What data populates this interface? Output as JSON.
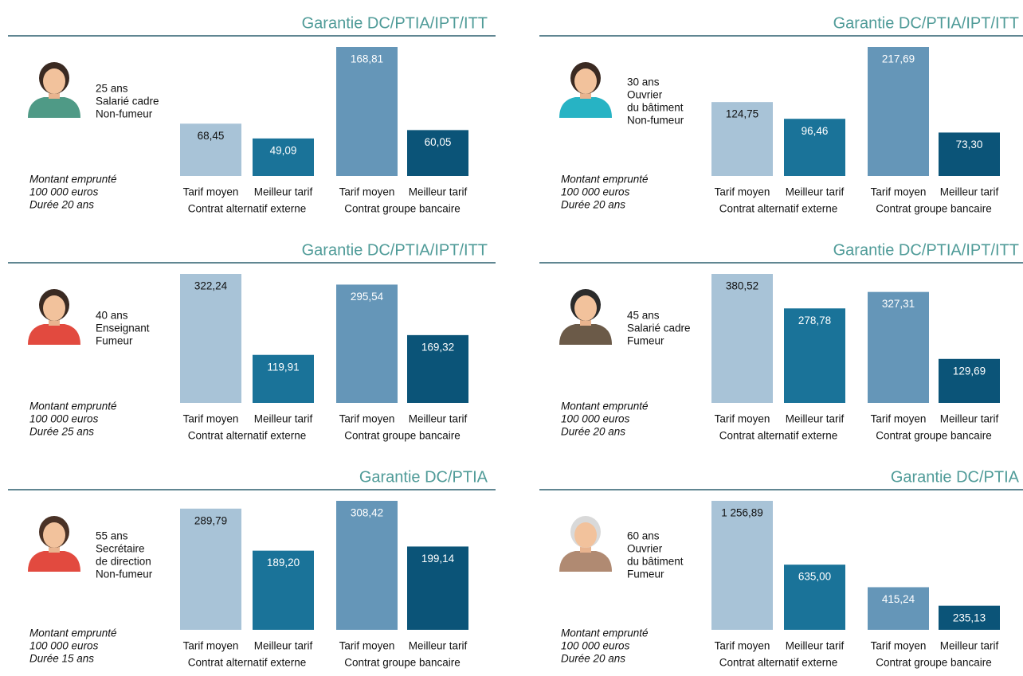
{
  "chart_data": [
    {
      "type": "bar",
      "title": "Garantie DC/PTIA/IPT/ITT",
      "profile": [
        "25 ans",
        "Salarié cadre",
        "Non-fumeur"
      ],
      "note": [
        "Montant emprunté",
        "100 000 euros",
        "Durée 20 ans"
      ],
      "categories": [
        "Tarif moyen",
        "Meilleur tarif",
        "Tarif moyen",
        "Meilleur tarif"
      ],
      "groups": [
        "Contrat alternatif externe",
        "Contrat groupe bancaire"
      ],
      "values": [
        68.45,
        49.09,
        168.81,
        60.05
      ],
      "value_labels": [
        "68,45",
        "49,09",
        "168,81",
        "60,05"
      ],
      "colors": [
        "#a8c3d7",
        "#1a7399",
        "#6596b8",
        "#0b5478"
      ]
    },
    {
      "type": "bar",
      "title": "Garantie DC/PTIA/IPT/ITT",
      "profile": [
        "30 ans",
        "Ouvrier",
        "du bâtiment",
        "Non-fumeur"
      ],
      "note": [
        "Montant emprunté",
        "100 000 euros",
        "Durée 20 ans"
      ],
      "categories": [
        "Tarif moyen",
        "Meilleur tarif",
        "Tarif moyen",
        "Meilleur tarif"
      ],
      "groups": [
        "Contrat alternatif externe",
        "Contrat groupe bancaire"
      ],
      "values": [
        124.75,
        96.46,
        217.69,
        73.3
      ],
      "value_labels": [
        "124,75",
        "96,46",
        "217,69",
        "73,30"
      ],
      "colors": [
        "#a8c3d7",
        "#1a7399",
        "#6596b8",
        "#0b5478"
      ]
    },
    {
      "type": "bar",
      "title": "Garantie DC/PTIA/IPT/ITT",
      "profile": [
        "40 ans",
        "Enseignant",
        "Fumeur"
      ],
      "note": [
        "Montant emprunté",
        "100 000 euros",
        "Durée 25 ans"
      ],
      "categories": [
        "Tarif moyen",
        "Meilleur tarif",
        "Tarif moyen",
        "Meilleur tarif"
      ],
      "groups": [
        "Contrat alternatif externe",
        "Contrat groupe bancaire"
      ],
      "values": [
        322.24,
        119.91,
        295.54,
        169.32
      ],
      "value_labels": [
        "322,24",
        "119,91",
        "295,54",
        "169,32"
      ],
      "colors": [
        "#a8c3d7",
        "#1a7399",
        "#6596b8",
        "#0b5478"
      ]
    },
    {
      "type": "bar",
      "title": "Garantie DC/PTIA/IPT/ITT",
      "profile": [
        "45 ans",
        "Salarié cadre",
        "Fumeur"
      ],
      "note": [
        "Montant emprunté",
        "100 000 euros",
        "Durée 20 ans"
      ],
      "categories": [
        "Tarif moyen",
        "Meilleur tarif",
        "Tarif moyen",
        "Meilleur tarif"
      ],
      "groups": [
        "Contrat alternatif externe",
        "Contrat groupe bancaire"
      ],
      "values": [
        380.52,
        278.78,
        327.31,
        129.69
      ],
      "value_labels": [
        "380,52",
        "278,78",
        "327,31",
        "129,69"
      ],
      "colors": [
        "#a8c3d7",
        "#1a7399",
        "#6596b8",
        "#0b5478"
      ]
    },
    {
      "type": "bar",
      "title": "Garantie DC/PTIA",
      "profile": [
        "55 ans",
        "Secrétaire",
        "de direction",
        "Non-fumeur"
      ],
      "note": [
        "Montant emprunté",
        "100 000 euros",
        "Durée 15 ans"
      ],
      "categories": [
        "Tarif moyen",
        "Meilleur tarif",
        "Tarif moyen",
        "Meilleur tarif"
      ],
      "groups": [
        "Contrat alternatif externe",
        "Contrat groupe bancaire"
      ],
      "values": [
        289.79,
        189.2,
        308.42,
        199.14
      ],
      "value_labels": [
        "289,79",
        "189,20",
        "308,42",
        "199,14"
      ],
      "colors": [
        "#a8c3d7",
        "#1a7399",
        "#6596b8",
        "#0b5478"
      ]
    },
    {
      "type": "bar",
      "title": "Garantie DC/PTIA",
      "profile": [
        "60 ans",
        "Ouvrier",
        "du bâtiment",
        "Fumeur"
      ],
      "note": [
        "Montant emprunté",
        "100 000 euros",
        "Durée 20 ans"
      ],
      "categories": [
        "Tarif moyen",
        "Meilleur tarif",
        "Tarif moyen",
        "Meilleur tarif"
      ],
      "groups": [
        "Contrat alternatif externe",
        "Contrat groupe bancaire"
      ],
      "values": [
        1256.89,
        635.0,
        415.24,
        235.13
      ],
      "value_labels": [
        "1 256,89",
        "635,00",
        "415,24",
        "235,13"
      ],
      "colors": [
        "#a8c3d7",
        "#1a7399",
        "#6596b8",
        "#0b5478"
      ]
    }
  ]
}
